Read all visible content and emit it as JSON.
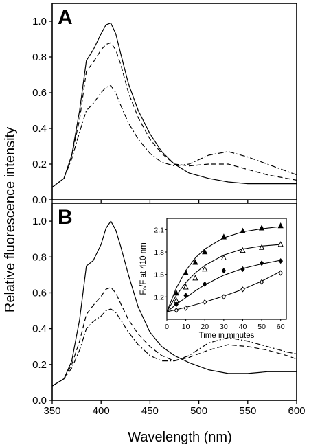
{
  "colors": {
    "line": "#000000",
    "background": "#ffffff"
  },
  "figure": {
    "ylabel": "Relative fluorescence intensity",
    "xlabel": "Wavelength (nm)"
  },
  "chart_data": [
    {
      "type": "line",
      "panel_label": "A",
      "xlim": [
        350,
        600
      ],
      "ylim": [
        0,
        1.1
      ],
      "x_ticks": [
        "350",
        "400",
        "450",
        "500",
        "550",
        "600"
      ],
      "y_ticks": [
        "0.0",
        "0.2",
        "0.4",
        "0.6",
        "0.8",
        "1.0"
      ],
      "series": [
        {
          "style": "solid",
          "x": [
            350,
            362,
            370,
            378,
            385,
            392,
            400,
            405,
            410,
            415,
            420,
            428,
            438,
            450,
            462,
            475,
            490,
            510,
            530,
            550,
            570,
            590,
            600
          ],
          "y": [
            0.07,
            0.12,
            0.25,
            0.5,
            0.78,
            0.84,
            0.93,
            0.98,
            0.99,
            0.93,
            0.82,
            0.65,
            0.5,
            0.37,
            0.27,
            0.2,
            0.15,
            0.12,
            0.1,
            0.09,
            0.09,
            0.09,
            0.09
          ]
        },
        {
          "style": "dashed",
          "x": [
            350,
            362,
            370,
            378,
            385,
            392,
            400,
            405,
            410,
            415,
            420,
            428,
            438,
            450,
            462,
            475,
            490,
            510,
            530,
            550,
            570,
            590,
            600
          ],
          "y": [
            0.07,
            0.12,
            0.25,
            0.45,
            0.72,
            0.77,
            0.84,
            0.87,
            0.88,
            0.84,
            0.76,
            0.6,
            0.46,
            0.34,
            0.26,
            0.2,
            0.19,
            0.2,
            0.2,
            0.17,
            0.14,
            0.12,
            0.11
          ]
        },
        {
          "style": "dash-dot",
          "x": [
            350,
            362,
            370,
            378,
            385,
            392,
            400,
            405,
            410,
            415,
            420,
            428,
            438,
            450,
            462,
            475,
            490,
            510,
            530,
            550,
            570,
            590,
            600
          ],
          "y": [
            0.07,
            0.12,
            0.23,
            0.38,
            0.5,
            0.54,
            0.6,
            0.63,
            0.64,
            0.6,
            0.53,
            0.43,
            0.34,
            0.26,
            0.21,
            0.19,
            0.2,
            0.25,
            0.27,
            0.24,
            0.2,
            0.16,
            0.14
          ]
        }
      ]
    },
    {
      "type": "line",
      "panel_label": "B",
      "xlim": [
        350,
        600
      ],
      "ylim": [
        0,
        1.1
      ],
      "x_ticks": [
        "350",
        "400",
        "450",
        "500",
        "550",
        "600"
      ],
      "y_ticks": [
        "0.0",
        "0.2",
        "0.4",
        "0.6",
        "0.8",
        "1.0"
      ],
      "series": [
        {
          "style": "solid",
          "x": [
            350,
            362,
            370,
            378,
            385,
            392,
            400,
            405,
            410,
            415,
            420,
            428,
            438,
            450,
            462,
            475,
            490,
            510,
            530,
            550,
            570,
            590,
            600
          ],
          "y": [
            0.08,
            0.12,
            0.22,
            0.45,
            0.75,
            0.78,
            0.87,
            0.96,
            1.0,
            0.95,
            0.86,
            0.7,
            0.52,
            0.38,
            0.3,
            0.25,
            0.21,
            0.17,
            0.15,
            0.15,
            0.16,
            0.16,
            0.16
          ]
        },
        {
          "style": "dashed",
          "x": [
            350,
            362,
            370,
            378,
            385,
            392,
            400,
            405,
            410,
            415,
            420,
            428,
            438,
            450,
            462,
            475,
            490,
            510,
            530,
            550,
            570,
            590,
            600
          ],
          "y": [
            0.08,
            0.12,
            0.2,
            0.33,
            0.48,
            0.53,
            0.58,
            0.62,
            0.63,
            0.6,
            0.54,
            0.45,
            0.37,
            0.3,
            0.25,
            0.22,
            0.24,
            0.28,
            0.31,
            0.3,
            0.28,
            0.25,
            0.23
          ]
        },
        {
          "style": "dash-dot",
          "x": [
            350,
            362,
            370,
            378,
            385,
            392,
            400,
            405,
            410,
            415,
            420,
            428,
            438,
            450,
            462,
            475,
            490,
            510,
            530,
            550,
            570,
            590,
            600
          ],
          "y": [
            0.08,
            0.12,
            0.18,
            0.28,
            0.4,
            0.44,
            0.47,
            0.5,
            0.51,
            0.49,
            0.45,
            0.38,
            0.31,
            0.25,
            0.22,
            0.22,
            0.25,
            0.32,
            0.35,
            0.33,
            0.3,
            0.27,
            0.26
          ]
        }
      ]
    },
    {
      "type": "scatter",
      "inset_of": "B",
      "ylabel": "F₀/F at 410 nm",
      "xlabel": "Time in minutes",
      "xlim": [
        0,
        63
      ],
      "ylim": [
        0.9,
        2.25
      ],
      "x_ticks": [
        "0",
        "10",
        "20",
        "30",
        "40",
        "50",
        "60"
      ],
      "y_ticks": [
        "1.2",
        "1.5",
        "1.8",
        "2.1"
      ],
      "series": [
        {
          "marker": "filled-triangle",
          "x": [
            5,
            10,
            15,
            20,
            30,
            40,
            50,
            60
          ],
          "y": [
            1.25,
            1.52,
            1.66,
            1.8,
            2.0,
            2.08,
            2.12,
            2.15
          ],
          "fit_x": [
            0,
            5,
            10,
            15,
            20,
            30,
            40,
            50,
            60
          ],
          "fit_y": [
            1.0,
            1.32,
            1.55,
            1.72,
            1.84,
            1.99,
            2.07,
            2.11,
            2.14
          ]
        },
        {
          "marker": "open-triangle",
          "x": [
            5,
            10,
            15,
            20,
            30,
            40,
            50,
            60
          ],
          "y": [
            1.15,
            1.33,
            1.45,
            1.57,
            1.72,
            1.82,
            1.86,
            1.9
          ],
          "fit_x": [
            0,
            5,
            10,
            15,
            20,
            30,
            40,
            50,
            60
          ],
          "fit_y": [
            1.0,
            1.22,
            1.39,
            1.52,
            1.62,
            1.76,
            1.84,
            1.88,
            1.9
          ]
        },
        {
          "marker": "filled-diamond",
          "x": [
            5,
            10,
            20,
            30,
            40,
            50,
            60
          ],
          "y": [
            1.1,
            1.22,
            1.37,
            1.55,
            1.57,
            1.65,
            1.68
          ],
          "fit_x": [
            0,
            5,
            10,
            15,
            20,
            30,
            40,
            50,
            60
          ],
          "fit_y": [
            1.0,
            1.1,
            1.19,
            1.28,
            1.36,
            1.49,
            1.58,
            1.64,
            1.69
          ]
        },
        {
          "marker": "open-diamond",
          "x": [
            5,
            10,
            20,
            30,
            40,
            50,
            60
          ],
          "y": [
            1.02,
            1.05,
            1.13,
            1.2,
            1.3,
            1.4,
            1.52
          ],
          "fit_x": [
            0,
            10,
            20,
            30,
            40,
            50,
            60
          ],
          "fit_y": [
            1.0,
            1.06,
            1.13,
            1.21,
            1.3,
            1.41,
            1.54
          ]
        }
      ]
    }
  ]
}
